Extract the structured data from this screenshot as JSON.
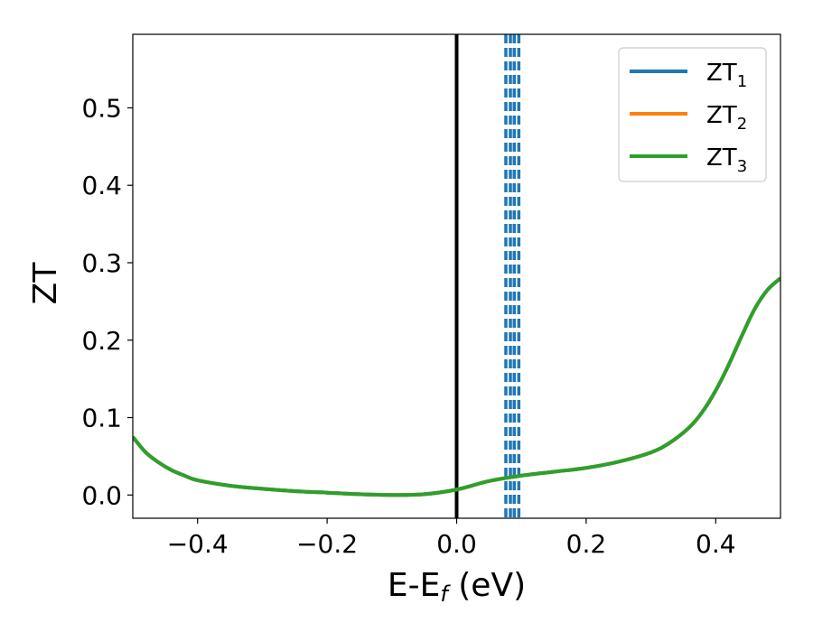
{
  "chart_data": {
    "type": "line",
    "xlabel": "E-E",
    "xlabel_sub": "f",
    "xlabel_unit": " (eV)",
    "ylabel": "ZT",
    "xlim": [
      -0.5,
      0.5
    ],
    "ylim": [
      -0.03,
      0.595
    ],
    "xticks": [
      -0.4,
      -0.2,
      0.0,
      0.2,
      0.4
    ],
    "xtick_labels": [
      "−0.4",
      "−0.2",
      "0.0",
      "0.2",
      "0.4"
    ],
    "yticks": [
      0.0,
      0.1,
      0.2,
      0.3,
      0.4,
      0.5
    ],
    "ytick_labels": [
      "0.0",
      "0.1",
      "0.2",
      "0.3",
      "0.4",
      "0.5"
    ],
    "grid": false,
    "legend_position": "top-right",
    "x": [
      -0.5,
      -0.48,
      -0.46,
      -0.44,
      -0.42,
      -0.4,
      -0.35,
      -0.3,
      -0.25,
      -0.2,
      -0.15,
      -0.1,
      -0.05,
      0.0,
      0.05,
      0.1,
      0.15,
      0.2,
      0.25,
      0.3,
      0.33,
      0.36,
      0.38,
      0.4,
      0.42,
      0.44,
      0.46,
      0.48,
      0.5
    ],
    "series": [
      {
        "name": "ZT",
        "sub": "1",
        "color": "#1f77b4",
        "values": [
          0.075,
          0.055,
          0.042,
          0.032,
          0.025,
          0.019,
          0.012,
          0.008,
          0.005,
          0.003,
          0.001,
          0.0,
          0.001,
          0.007,
          0.018,
          0.025,
          0.03,
          0.035,
          0.043,
          0.055,
          0.068,
          0.088,
          0.108,
          0.135,
          0.168,
          0.205,
          0.24,
          0.265,
          0.28
        ]
      },
      {
        "name": "ZT",
        "sub": "2",
        "color": "#ff7f0e",
        "values": [
          0.075,
          0.055,
          0.042,
          0.032,
          0.025,
          0.019,
          0.012,
          0.008,
          0.005,
          0.003,
          0.001,
          0.0,
          0.001,
          0.007,
          0.018,
          0.025,
          0.03,
          0.035,
          0.043,
          0.055,
          0.068,
          0.088,
          0.108,
          0.135,
          0.168,
          0.205,
          0.24,
          0.265,
          0.28
        ]
      },
      {
        "name": "ZT",
        "sub": "3",
        "color": "#2ca02c",
        "values": [
          0.075,
          0.055,
          0.042,
          0.032,
          0.025,
          0.019,
          0.012,
          0.008,
          0.005,
          0.003,
          0.001,
          0.0,
          0.001,
          0.007,
          0.018,
          0.025,
          0.03,
          0.035,
          0.043,
          0.055,
          0.068,
          0.088,
          0.108,
          0.135,
          0.168,
          0.205,
          0.24,
          0.265,
          0.28
        ]
      }
    ],
    "vlines": [
      {
        "x": 0.0,
        "color": "#000000",
        "style": "solid"
      },
      {
        "x": 0.076,
        "color": "#1f77b4",
        "style": "dashed"
      },
      {
        "x": 0.083,
        "color": "#1f77b4",
        "style": "dashed"
      },
      {
        "x": 0.089,
        "color": "#1f77b4",
        "style": "dashed"
      },
      {
        "x": 0.096,
        "color": "#1f77b4",
        "style": "dashed"
      }
    ]
  }
}
